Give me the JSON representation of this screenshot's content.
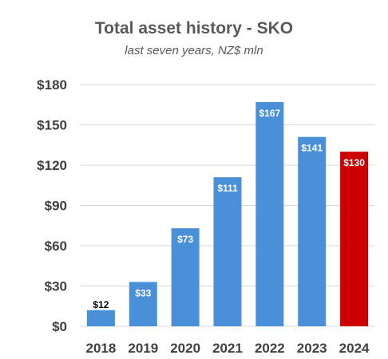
{
  "chart_data": {
    "type": "bar",
    "title": "Total asset history - SKO",
    "subtitle": "last seven years, NZ$ mln",
    "xlabel": "",
    "ylabel": "",
    "categories": [
      "2018",
      "2019",
      "2020",
      "2021",
      "2022",
      "2023",
      "2024"
    ],
    "values": [
      12,
      33,
      73,
      111,
      167,
      141,
      130
    ],
    "data_labels": [
      "$12",
      "$33",
      "$73",
      "$111",
      "$167",
      "$141",
      "$130"
    ],
    "ylim": [
      0,
      180
    ],
    "yticks": [
      0,
      30,
      60,
      90,
      120,
      150,
      180
    ],
    "ytick_labels": [
      "$0",
      "$30",
      "$60",
      "$90",
      "$120",
      "$150",
      "$180"
    ],
    "grid": true,
    "legend": "none",
    "colors": {
      "bar": "#4a90d9",
      "highlight_bar": "#cc0000",
      "grid": "#d9d9d9",
      "axis_text": "#404040"
    },
    "highlight_index": 6
  }
}
